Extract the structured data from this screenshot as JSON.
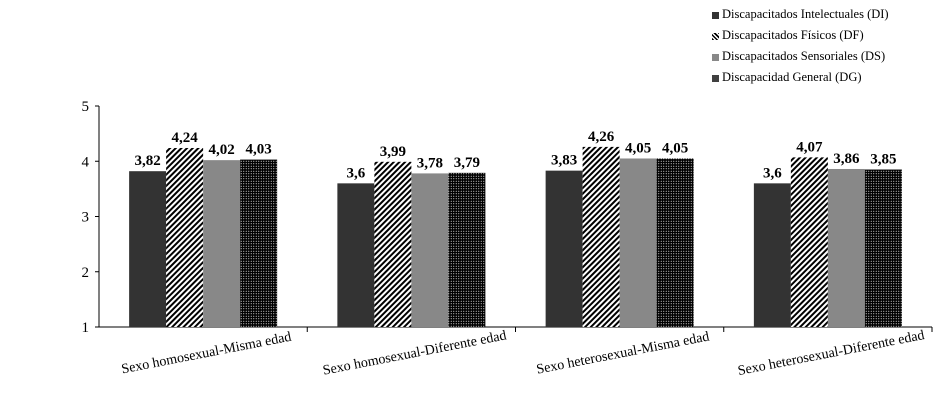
{
  "chart_data": {
    "type": "bar",
    "title": "",
    "xlabel": "",
    "ylabel": "",
    "ylim": [
      1,
      5
    ],
    "yticks": [
      "1",
      "2",
      "3",
      "4",
      "5"
    ],
    "grid": false,
    "legend_position": "top-right",
    "categories": [
      "Sexo homosexual-Misma edad",
      "Sexo homosexual-Diferente edad",
      "Sexo heterosexual-Misma edad",
      "Sexo heterosexual-Diferente edad"
    ],
    "series": [
      {
        "name": "Discapacitados Intelectuales (DI)",
        "values": [
          3.82,
          3.6,
          3.83,
          3.6
        ],
        "labels": [
          "3,82",
          "3,6",
          "3,83",
          "3,6"
        ],
        "fill": "solid-dark",
        "color": "#333333"
      },
      {
        "name": "Discapacitados Físicos (DF)",
        "values": [
          4.24,
          3.99,
          4.26,
          4.07
        ],
        "labels": [
          "4,24",
          "3,99",
          "4,26",
          "4,07"
        ],
        "fill": "diagonal-stripes",
        "color": "#000000"
      },
      {
        "name": "Discapacitados Sensoriales (DS)",
        "values": [
          4.02,
          3.78,
          4.05,
          3.86
        ],
        "labels": [
          "4,02",
          "3,78",
          "4,05",
          "3,86"
        ],
        "fill": "solid-gray",
        "color": "#888888"
      },
      {
        "name": "Discapacidad General (DG)",
        "values": [
          4.03,
          3.79,
          4.05,
          3.85
        ],
        "labels": [
          "4,03",
          "3,79",
          "4,05",
          "3,85"
        ],
        "fill": "dotted",
        "color": "#000000"
      }
    ]
  }
}
